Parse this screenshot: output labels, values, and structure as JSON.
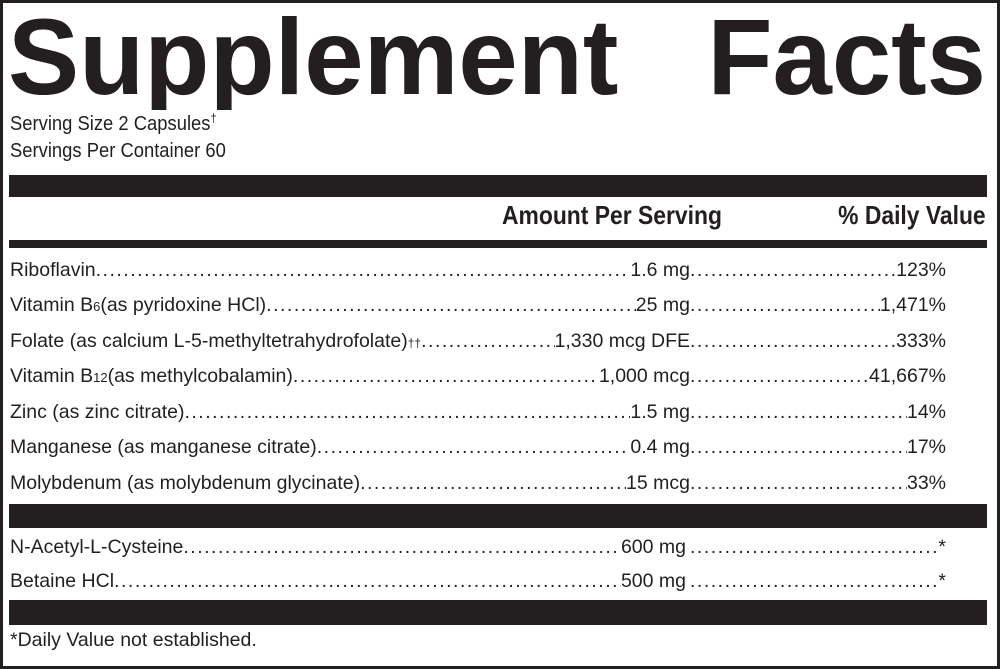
{
  "title": "Supplement   Facts",
  "serving_size": "Serving Size 2 Capsules",
  "serving_size_mark": "†",
  "servings_per_container": "Servings Per Container 60",
  "header": {
    "amount": "Amount Per Serving",
    "dv": "% Daily Value"
  },
  "vitamins": [
    {
      "name": "Riboflavin ",
      "sub": "",
      "rest": "",
      "sup": "",
      "amount": "1.6 mg",
      "dv": "123%"
    },
    {
      "name": "Vitamin B",
      "sub": "6",
      "rest": " (as pyridoxine HCl)",
      "sup": "",
      "amount": "25 mg",
      "dv": "1,471%"
    },
    {
      "name": "Folate (as calcium L-5-methyltetrahydrofolate)",
      "sub": "",
      "rest": "",
      "sup": "††",
      "amount": "1,330 mcg DFE",
      "dv": "333%"
    },
    {
      "name": "Vitamin B",
      "sub": "12",
      "rest": " (as methylcobalamin) ",
      "sup": "",
      "amount": "1,000 mcg",
      "dv": "41,667%"
    },
    {
      "name": "Zinc (as zinc citrate)",
      "sub": "",
      "rest": "",
      "sup": "",
      "amount": "1.5 mg",
      "dv": "14%"
    },
    {
      "name": "Manganese (as manganese citrate) ",
      "sub": "",
      "rest": "",
      "sup": "",
      "amount": "0.4 mg",
      "dv": "17%"
    },
    {
      "name": "Molybdenum (as molybdenum glycinate)",
      "sub": "",
      "rest": "",
      "sup": "",
      "amount": "15 mcg",
      "dv": "33%"
    }
  ],
  "others": [
    {
      "name": "N-Acetyl-L-Cysteine",
      "amount": "600 mg",
      "dv": "*"
    },
    {
      "name": "Betaine HCl ",
      "amount": "500 mg",
      "dv": "*"
    }
  ],
  "footnote": "*Daily Value not established."
}
